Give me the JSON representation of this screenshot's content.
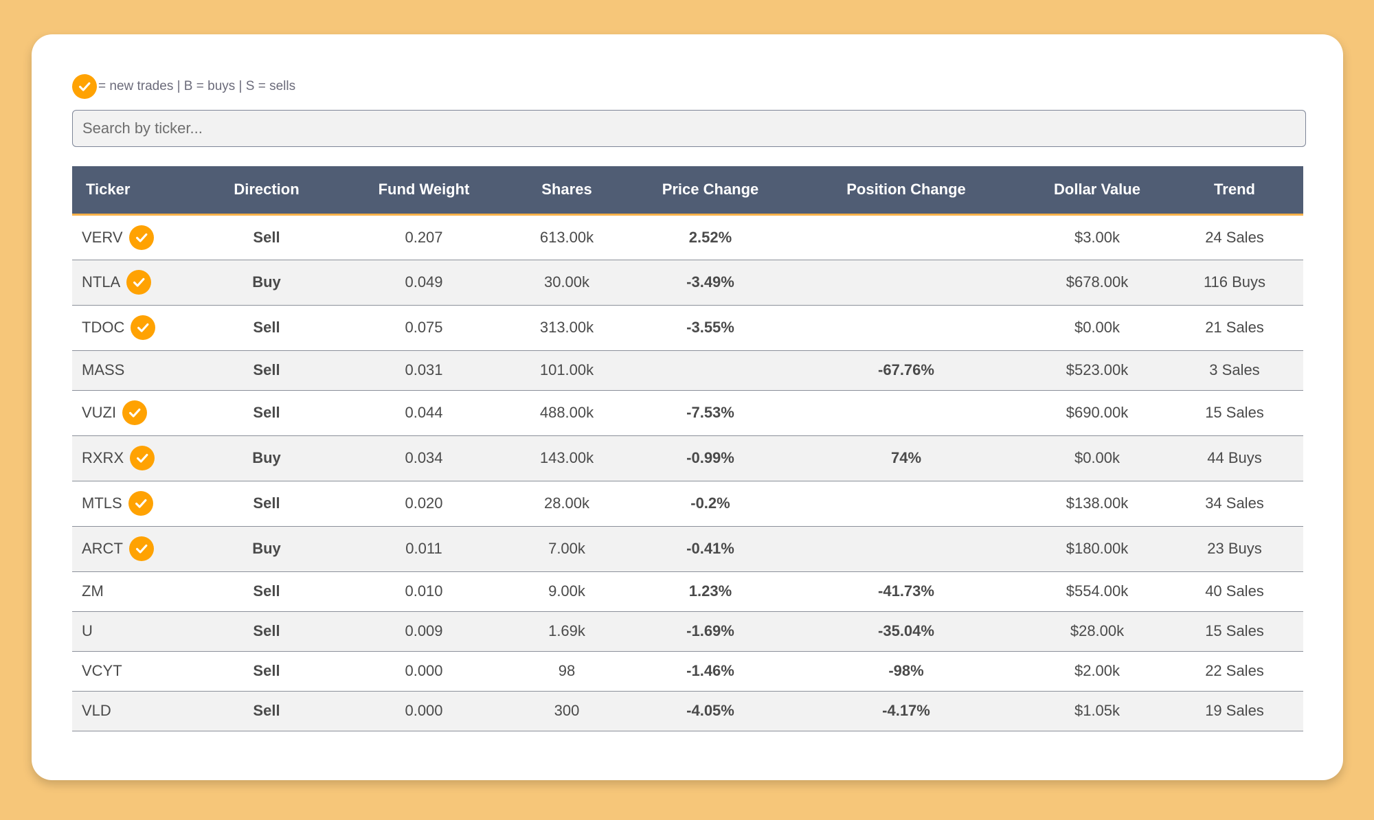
{
  "legend": {
    "text": "= new trades | B = buys | S = sells"
  },
  "search": {
    "placeholder": "Search by ticker..."
  },
  "colors": {
    "background": "#f6c679",
    "header": "#505d74",
    "check": "#ffa202",
    "positive": "#0a7b0a",
    "negative": "#f20000"
  },
  "table": {
    "headers": [
      "Ticker",
      "Direction",
      "Fund Weight",
      "Shares",
      "Price Change",
      "Position Change",
      "Dollar Value",
      "Trend"
    ],
    "rows": [
      {
        "ticker": "VERV",
        "new_trade": true,
        "direction": "Sell",
        "fund_weight": "0.207",
        "shares": "613.00k",
        "price_change": "2.52%",
        "position_change": "",
        "dollar_value": "$3.00k",
        "trend": "24 Sales"
      },
      {
        "ticker": "NTLA",
        "new_trade": true,
        "direction": "Buy",
        "fund_weight": "0.049",
        "shares": "30.00k",
        "price_change": "-3.49%",
        "position_change": "",
        "dollar_value": "$678.00k",
        "trend": "116 Buys"
      },
      {
        "ticker": "TDOC",
        "new_trade": true,
        "direction": "Sell",
        "fund_weight": "0.075",
        "shares": "313.00k",
        "price_change": "-3.55%",
        "position_change": "",
        "dollar_value": "$0.00k",
        "trend": "21 Sales"
      },
      {
        "ticker": "MASS",
        "new_trade": false,
        "direction": "Sell",
        "fund_weight": "0.031",
        "shares": "101.00k",
        "price_change": "",
        "position_change": "-67.76%",
        "dollar_value": "$523.00k",
        "trend": "3 Sales"
      },
      {
        "ticker": "VUZI",
        "new_trade": true,
        "direction": "Sell",
        "fund_weight": "0.044",
        "shares": "488.00k",
        "price_change": "-7.53%",
        "position_change": "",
        "dollar_value": "$690.00k",
        "trend": "15 Sales"
      },
      {
        "ticker": "RXRX",
        "new_trade": true,
        "direction": "Buy",
        "fund_weight": "0.034",
        "shares": "143.00k",
        "price_change": "-0.99%",
        "position_change": "74%",
        "dollar_value": "$0.00k",
        "trend": "44 Buys"
      },
      {
        "ticker": "MTLS",
        "new_trade": true,
        "direction": "Sell",
        "fund_weight": "0.020",
        "shares": "28.00k",
        "price_change": "-0.2%",
        "position_change": "",
        "dollar_value": "$138.00k",
        "trend": "34 Sales"
      },
      {
        "ticker": "ARCT",
        "new_trade": true,
        "direction": "Buy",
        "fund_weight": "0.011",
        "shares": "7.00k",
        "price_change": "-0.41%",
        "position_change": "",
        "dollar_value": "$180.00k",
        "trend": "23 Buys"
      },
      {
        "ticker": "ZM",
        "new_trade": false,
        "direction": "Sell",
        "fund_weight": "0.010",
        "shares": "9.00k",
        "price_change": "1.23%",
        "position_change": "-41.73%",
        "dollar_value": "$554.00k",
        "trend": "40 Sales"
      },
      {
        "ticker": "U",
        "new_trade": false,
        "direction": "Sell",
        "fund_weight": "0.009",
        "shares": "1.69k",
        "price_change": "-1.69%",
        "position_change": "-35.04%",
        "dollar_value": "$28.00k",
        "trend": "15 Sales"
      },
      {
        "ticker": "VCYT",
        "new_trade": false,
        "direction": "Sell",
        "fund_weight": "0.000",
        "shares": "98",
        "price_change": "-1.46%",
        "position_change": "-98%",
        "dollar_value": "$2.00k",
        "trend": "22 Sales"
      },
      {
        "ticker": "VLD",
        "new_trade": false,
        "direction": "Sell",
        "fund_weight": "0.000",
        "shares": "300",
        "price_change": "-4.05%",
        "position_change": "-4.17%",
        "dollar_value": "$1.05k",
        "trend": "19 Sales"
      }
    ]
  }
}
